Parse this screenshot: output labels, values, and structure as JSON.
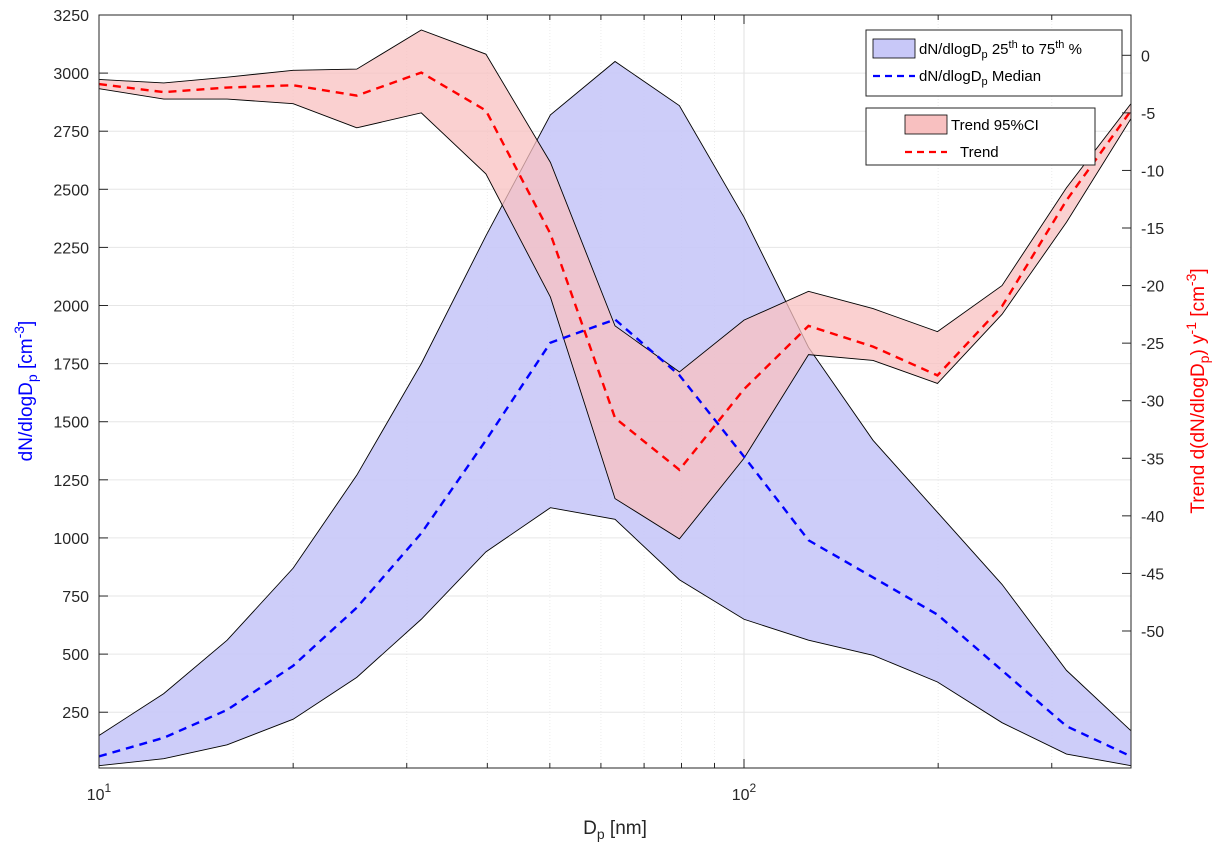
{
  "chart_data": {
    "type": "area",
    "x_scale": "log",
    "x": [
      10,
      12.6,
      15.8,
      20,
      25.1,
      31.6,
      39.8,
      50.1,
      63.1,
      79.4,
      100,
      125.9,
      158.5,
      199.5,
      251.2,
      316.2,
      398.1
    ],
    "xlim": [
      10,
      398.1
    ],
    "xlabel_main": "D",
    "xlabel_sub": "p",
    "xlabel_unit": " [nm]",
    "x_ticks": [
      {
        "value": 10,
        "base": "10",
        "exp": "1"
      },
      {
        "value": 100,
        "base": "10",
        "exp": "2"
      }
    ],
    "left_axis": {
      "label_main": "dN/dlogD",
      "label_sub": "p",
      "label_unit": " [cm",
      "label_sup": "-3",
      "label_close": "]",
      "color": "#0000ff",
      "ylim": [
        10,
        3250
      ],
      "ticks": [
        250,
        500,
        750,
        1000,
        1250,
        1500,
        1750,
        2000,
        2250,
        2500,
        2750,
        3000,
        3250
      ]
    },
    "right_axis": {
      "label_a": "Trend d(dN/dlogD",
      "label_a_sub": "p",
      "label_b": ") y",
      "label_b_sup": "-1",
      "label_c": " [cm",
      "label_c_sup": "-3",
      "label_d": "]",
      "color": "#ff0000",
      "ylim": [
        -61.9,
        3.5
      ],
      "ticks": [
        0,
        -5,
        -10,
        -15,
        -20,
        -25,
        -30,
        -35,
        -40,
        -45,
        -50
      ]
    },
    "series": [
      {
        "name": "dN/dlogD",
        "name_sub": "p",
        "name_mid": " 25",
        "name_sup1": "th",
        "name_mid2": " to 75",
        "name_sup2": "th",
        "name_end": " %",
        "type": "band",
        "axis": "left",
        "lower": [
          20,
          50,
          110,
          220,
          400,
          650,
          940,
          1130,
          1080,
          820,
          650,
          560,
          495,
          380,
          205,
          70,
          20
        ],
        "upper": [
          150,
          330,
          560,
          870,
          1270,
          1750,
          2300,
          2820,
          3050,
          2860,
          2380,
          1820,
          1420,
          1110,
          800,
          430,
          170
        ],
        "fill": "#c8c8f8",
        "stroke": "#000000"
      },
      {
        "name": "dN/dlogD",
        "name_sub": "p",
        "name_end": " Median",
        "type": "line",
        "axis": "left",
        "values": [
          60,
          140,
          260,
          450,
          700,
          1020,
          1420,
          1840,
          1940,
          1700,
          1350,
          990,
          830,
          670,
          430,
          190,
          60
        ],
        "color": "#0000ff",
        "dash": "dashed"
      },
      {
        "name": "Trend 95%CI",
        "type": "band",
        "axis": "right",
        "lower": [
          -2.9,
          -3.8,
          -3.8,
          -4.2,
          -6.3,
          -5,
          -10.3,
          -21,
          -38.5,
          -42,
          -35,
          -26,
          -26.5,
          -28.5,
          -22.5,
          -14.5,
          -5.5
        ],
        "upper": [
          -2.1,
          -2.4,
          -1.9,
          -1.3,
          -1.2,
          2.2,
          0.1,
          -9.3,
          -23.5,
          -27.5,
          -23,
          -20.5,
          -22,
          -24,
          -20,
          -11.5,
          -4.2
        ],
        "fill": "#f8c0c0",
        "stroke": "#000000"
      },
      {
        "name": "Trend",
        "type": "line",
        "axis": "right",
        "values": [
          -2.5,
          -3.2,
          -2.8,
          -2.6,
          -3.5,
          -1.5,
          -4.8,
          -15.5,
          -31.5,
          -36,
          -29,
          -23.5,
          -25.3,
          -27.8,
          -21.8,
          -12.6,
          -4.8
        ],
        "color": "#ff0000",
        "dash": "dashed"
      }
    ],
    "grid": true,
    "legend": "top-right"
  }
}
